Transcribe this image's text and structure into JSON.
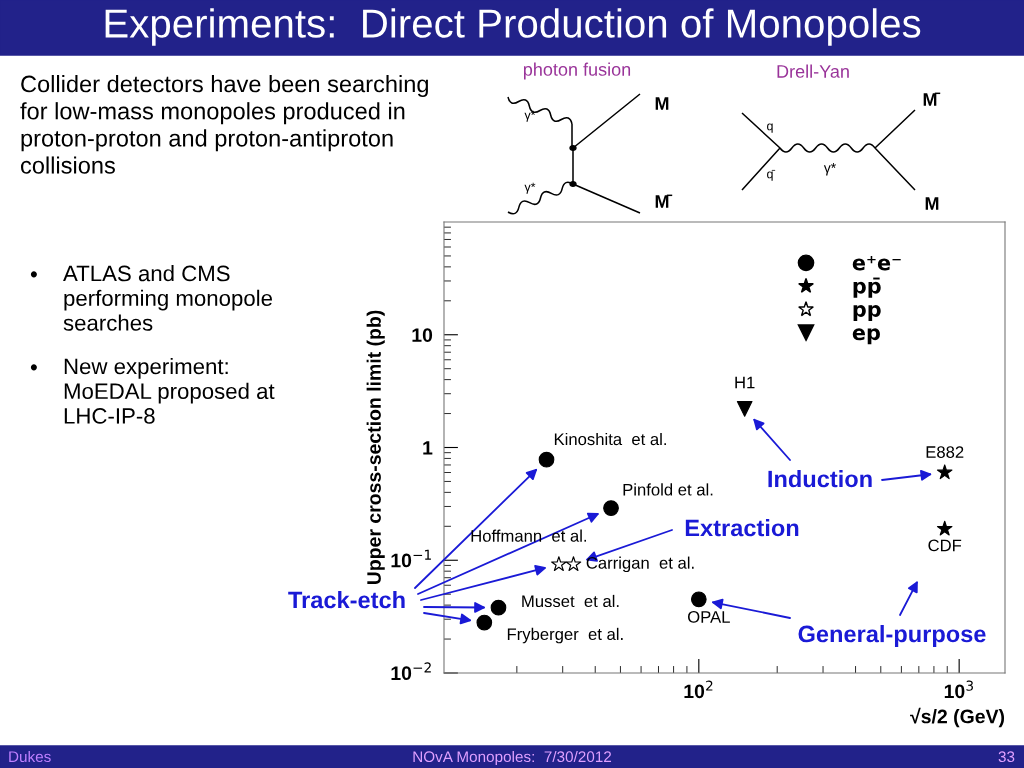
{
  "chart_data": {
    "type": "scatter",
    "title": "Experiments:  Direct Production of Monopoles",
    "xlabel": "√s/2 (GeV)",
    "ylabel": "Upper cross-section limit (pb)",
    "log": "xy",
    "xlim": [
      10.5,
      1500
    ],
    "ylim": [
      0.01,
      100
    ],
    "xticks": [
      {
        "value": 100,
        "label": "10$^{2}$"
      },
      {
        "value": 1000,
        "label": "10$^{3}$"
      }
    ],
    "yticks": [
      {
        "value": 0.01,
        "label": "10$^{−2}$"
      },
      {
        "value": 0.1,
        "label": "10$^{−1}$"
      },
      1,
      10
    ],
    "grid": false,
    "legend": "top right",
    "series": [
      {
        "name": "e⁺e⁻",
        "type": "scatter",
        "marker": "circle",
        "color": "#000000",
        "x": [
          26,
          46,
          17,
          15,
          100
        ],
        "values": [
          0.78,
          0.29,
          0.038,
          0.028,
          0.045
        ]
      },
      {
        "name": "pp̄",
        "type": "scatter",
        "marker": "star",
        "color": "#000000",
        "x": [
          880,
          880
        ],
        "values": [
          0.6,
          0.19
        ]
      },
      {
        "name": "pp",
        "type": "scatter",
        "marker": "star",
        "color": "#ffffff",
        "x": [
          29,
          33
        ],
        "values": [
          0.092,
          0.092
        ]
      },
      {
        "name": "ep",
        "type": "scatter",
        "marker": "triangle",
        "color": "#000000",
        "x": [
          150
        ],
        "values": [
          2.2
        ]
      }
    ],
    "annotations": [
      {
        "text": "Kinoshita  et al.",
        "x": 26,
        "y": 0.78
      },
      {
        "text": "Pinfold et al.",
        "x": 46,
        "y": 0.29
      },
      {
        "text": "Hoffmann  et al.",
        "x": 29,
        "y": 0.092
      },
      {
        "text": "Carrigan  et al.",
        "x": 33,
        "y": 0.092
      },
      {
        "text": "Musset  et al.",
        "x": 17,
        "y": 0.038
      },
      {
        "text": "Fryberger  et al.",
        "x": 15,
        "y": 0.028
      },
      {
        "text": "OPAL",
        "x": 100,
        "y": 0.045
      },
      {
        "text": "H1",
        "x": 150,
        "y": 2.2
      },
      {
        "text": "E882",
        "x": 880,
        "y": 0.6
      },
      {
        "text": "CDF",
        "x": 880,
        "y": 0.19
      },
      "Track-etch",
      "Extraction",
      "Induction",
      "General-purpose",
      "Collider detectors have been searching\nfor low-mass monopoles produced in\nproton-proton and proton-antiproton\ncollisions",
      "•",
      "ATLAS and CMS\nperforming monopole\nsearches",
      "•",
      "New experiment:\nMoEDAL proposed at\nLHC-IP-8",
      "photon fusion",
      "Drell-Yan",
      "γ*",
      "γ*",
      "M",
      "M̄",
      "q",
      "q̄",
      "γ*",
      "M̄",
      "M",
      "Dukes",
      "NOvA Monopoles:  7/30/2012",
      "33"
    ]
  }
}
